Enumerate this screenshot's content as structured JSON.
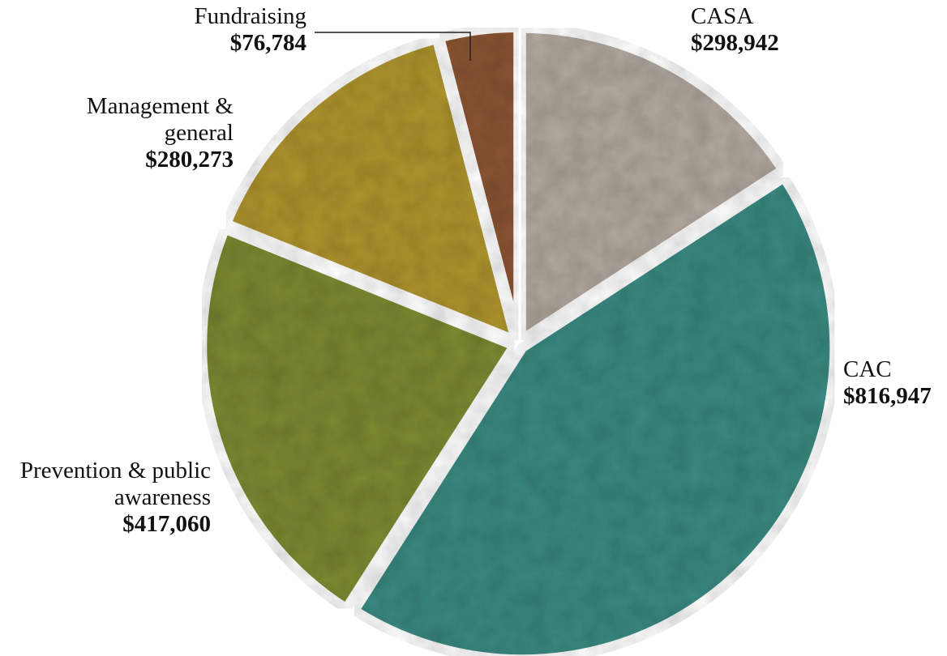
{
  "chart_data": {
    "type": "pie",
    "categories": [
      "CASA",
      "CAC",
      "Prevention & public awareness",
      "Management & general",
      "Fundraising"
    ],
    "values": [
      298942,
      816947,
      417060,
      280273,
      76784
    ],
    "value_labels": [
      "$298,942",
      "$816,947",
      "$417,060",
      "$280,273",
      "$76,784"
    ],
    "colors": [
      "#b3aaa0",
      "#3a8a82",
      "#7d8a32",
      "#b0952e",
      "#8c5634"
    ]
  }
}
